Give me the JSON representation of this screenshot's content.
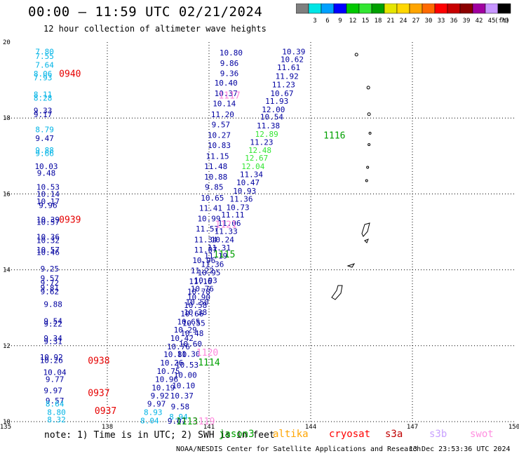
{
  "title": "00:00 – 11:59 UTC 02/21/2024",
  "subtitle": "12 hour collection of altimeter wave heights",
  "legend": {
    "unit": "(ft)",
    "bins": [
      {
        "label": "",
        "color": "#7f7f7f"
      },
      {
        "label": "3",
        "color": "#00e5e5"
      },
      {
        "label": "6",
        "color": "#00a0ff"
      },
      {
        "label": "9",
        "color": "#0000ff"
      },
      {
        "label": "12",
        "color": "#00c800"
      },
      {
        "label": "15",
        "color": "#33e633"
      },
      {
        "label": "18",
        "color": "#00a000"
      },
      {
        "label": "21",
        "color": "#e5e500"
      },
      {
        "label": "24",
        "color": "#ffd700"
      },
      {
        "label": "27",
        "color": "#ffa500"
      },
      {
        "label": "30",
        "color": "#ff6a00"
      },
      {
        "label": "33",
        "color": "#ff0000"
      },
      {
        "label": "36",
        "color": "#c80000"
      },
      {
        "label": "39",
        "color": "#8b0000"
      },
      {
        "label": "42",
        "color": "#a000a0"
      },
      {
        "label": "45",
        "color": "#c896ff"
      },
      {
        "label": "70",
        "color": "#000000"
      }
    ]
  },
  "note": {
    "prefix": "note: 1) Time is in UTC; 2) SWH is in feet",
    "satellites": [
      {
        "name": "jason3",
        "color": "#00a000"
      },
      {
        "name": "altika",
        "color": "#ffa500"
      },
      {
        "name": "cryosat",
        "color": "#ff0000"
      },
      {
        "name": "s3a",
        "color": "#c00000"
      },
      {
        "name": "s3b",
        "color": "#c8a0ff"
      },
      {
        "name": "swot",
        "color": "#ff90e0"
      }
    ]
  },
  "credit": "NOAA/NESDIS Center for Satellite Applications and Research",
  "timestamp": "13 Dec 23:53:36 UTC 2024",
  "chart_data": {
    "type": "scatter",
    "title": "12 hour collection of altimeter wave heights",
    "xlim": [
      135,
      150
    ],
    "ylim": [
      10,
      20
    ],
    "xticks": [
      135,
      138,
      141,
      144,
      147,
      150
    ],
    "yticks": [
      10,
      12,
      14,
      16,
      18,
      20
    ],
    "xtick_labels": [
      "135",
      "138",
      "141",
      "144",
      "147",
      "150"
    ],
    "ytick_labels": [
      "10",
      "12",
      "14",
      "16",
      "18",
      "20"
    ],
    "grid": true,
    "units": "ft",
    "colors": {
      "dark_blue": "#0000a0",
      "cyan": "#00b4e6",
      "green": "#00a000",
      "light_green": "#33e633",
      "red": "#e60000",
      "pink": "#ff88dd"
    },
    "time_labels": [
      {
        "lon": 136.9,
        "lat": 19.18,
        "label": "0940",
        "color": "red"
      },
      {
        "lon": 136.9,
        "lat": 15.33,
        "label": "0939",
        "color": "red"
      },
      {
        "lon": 137.75,
        "lat": 11.62,
        "label": "0938",
        "color": "red"
      },
      {
        "lon": 137.75,
        "lat": 10.77,
        "label": "0937",
        "color": "red"
      },
      {
        "lon": 137.95,
        "lat": 10.3,
        "label": "0937",
        "color": "red"
      },
      {
        "lon": 141.6,
        "lat": 18.6,
        "label": "1117",
        "color": "pink"
      },
      {
        "lon": 141.5,
        "lat": 15.2,
        "label": "1121",
        "color": "pink"
      },
      {
        "lon": 140.95,
        "lat": 11.83,
        "label": "1120",
        "color": "pink"
      },
      {
        "lon": 140.85,
        "lat": 10.02,
        "label": "1119",
        "color": "pink"
      },
      {
        "lon": 144.7,
        "lat": 17.55,
        "label": "1116",
        "color": "green"
      },
      {
        "lon": 141.45,
        "lat": 14.42,
        "label": "1115",
        "color": "green"
      },
      {
        "lon": 141.0,
        "lat": 11.57,
        "label": "1114",
        "color": "green"
      },
      {
        "lon": 140.35,
        "lat": 10.02,
        "label": "1113",
        "color": "green"
      }
    ],
    "points": [
      {
        "lon": 136.15,
        "lat": 19.75,
        "v": "7.80",
        "c": "cyan"
      },
      {
        "lon": 136.15,
        "lat": 19.63,
        "v": "7.55",
        "c": "cyan"
      },
      {
        "lon": 136.15,
        "lat": 19.4,
        "v": "7.64",
        "c": "cyan"
      },
      {
        "lon": 136.1,
        "lat": 19.17,
        "v": "8.06",
        "c": "cyan"
      },
      {
        "lon": 136.1,
        "lat": 19.07,
        "v": "7.93",
        "c": "cyan"
      },
      {
        "lon": 136.1,
        "lat": 18.62,
        "v": "8.11",
        "c": "cyan"
      },
      {
        "lon": 136.1,
        "lat": 18.53,
        "v": "8.28",
        "c": "cyan"
      },
      {
        "lon": 136.1,
        "lat": 18.2,
        "v": "9.33",
        "c": "dark_blue"
      },
      {
        "lon": 136.1,
        "lat": 18.1,
        "v": "9.17",
        "c": "dark_blue"
      },
      {
        "lon": 136.15,
        "lat": 17.7,
        "v": "8.79",
        "c": "cyan"
      },
      {
        "lon": 136.15,
        "lat": 17.47,
        "v": "9.47",
        "c": "dark_blue"
      },
      {
        "lon": 136.15,
        "lat": 17.15,
        "v": "9.88",
        "c": "cyan"
      },
      {
        "lon": 136.15,
        "lat": 17.07,
        "v": "9.66",
        "c": "cyan"
      },
      {
        "lon": 136.2,
        "lat": 16.73,
        "v": "10.03",
        "c": "dark_blue"
      },
      {
        "lon": 136.2,
        "lat": 16.55,
        "v": "9.48",
        "c": "dark_blue"
      },
      {
        "lon": 136.25,
        "lat": 16.18,
        "v": "10.53",
        "c": "dark_blue"
      },
      {
        "lon": 136.25,
        "lat": 16.0,
        "v": "10.14",
        "c": "dark_blue"
      },
      {
        "lon": 136.25,
        "lat": 15.8,
        "v": "10.17",
        "c": "dark_blue"
      },
      {
        "lon": 136.25,
        "lat": 15.7,
        "v": "9.96",
        "c": "dark_blue"
      },
      {
        "lon": 136.25,
        "lat": 15.32,
        "v": "10.39",
        "c": "dark_blue"
      },
      {
        "lon": 136.25,
        "lat": 15.26,
        "v": "10.57",
        "c": "dark_blue"
      },
      {
        "lon": 136.25,
        "lat": 14.87,
        "v": "10.36",
        "c": "dark_blue"
      },
      {
        "lon": 136.25,
        "lat": 14.78,
        "v": "10.32",
        "c": "dark_blue"
      },
      {
        "lon": 136.25,
        "lat": 14.53,
        "v": "10.57",
        "c": "dark_blue"
      },
      {
        "lon": 136.25,
        "lat": 14.46,
        "v": "10.46",
        "c": "dark_blue"
      },
      {
        "lon": 136.3,
        "lat": 14.03,
        "v": "9.25",
        "c": "dark_blue"
      },
      {
        "lon": 136.3,
        "lat": 13.78,
        "v": "9.57",
        "c": "dark_blue"
      },
      {
        "lon": 136.3,
        "lat": 13.66,
        "v": "9.72",
        "c": "dark_blue"
      },
      {
        "lon": 136.3,
        "lat": 13.53,
        "v": "9.81",
        "c": "dark_blue"
      },
      {
        "lon": 136.3,
        "lat": 13.43,
        "v": "9.62",
        "c": "dark_blue"
      },
      {
        "lon": 136.4,
        "lat": 13.1,
        "v": "9.88",
        "c": "dark_blue"
      },
      {
        "lon": 136.4,
        "lat": 12.65,
        "v": "9.54",
        "c": "dark_blue"
      },
      {
        "lon": 136.4,
        "lat": 12.58,
        "v": "9.22",
        "c": "dark_blue"
      },
      {
        "lon": 136.4,
        "lat": 12.2,
        "v": "9.34",
        "c": "dark_blue"
      },
      {
        "lon": 136.4,
        "lat": 12.12,
        "v": "9.31",
        "c": "dark_blue"
      },
      {
        "lon": 136.35,
        "lat": 11.7,
        "v": "10.92",
        "c": "dark_blue"
      },
      {
        "lon": 136.35,
        "lat": 11.62,
        "v": "10.26",
        "c": "dark_blue"
      },
      {
        "lon": 136.45,
        "lat": 11.3,
        "v": "10.04",
        "c": "dark_blue"
      },
      {
        "lon": 136.45,
        "lat": 11.12,
        "v": "9.77",
        "c": "dark_blue"
      },
      {
        "lon": 136.4,
        "lat": 10.82,
        "v": "9.97",
        "c": "dark_blue"
      },
      {
        "lon": 136.45,
        "lat": 10.55,
        "v": "9.57",
        "c": "dark_blue"
      },
      {
        "lon": 136.45,
        "lat": 10.47,
        "v": "8.64",
        "c": "cyan"
      },
      {
        "lon": 136.5,
        "lat": 10.25,
        "v": "8.80",
        "c": "cyan"
      },
      {
        "lon": 136.5,
        "lat": 10.06,
        "v": "8.32",
        "c": "cyan"
      },
      {
        "lon": 141.65,
        "lat": 19.72,
        "v": "10.80",
        "c": "dark_blue"
      },
      {
        "lon": 141.6,
        "lat": 19.45,
        "v": "9.86",
        "c": "dark_blue"
      },
      {
        "lon": 141.6,
        "lat": 19.18,
        "v": "9.36",
        "c": "dark_blue"
      },
      {
        "lon": 141.5,
        "lat": 18.93,
        "v": "10.40",
        "c": "dark_blue"
      },
      {
        "lon": 141.5,
        "lat": 18.65,
        "v": "10.37",
        "c": "dark_blue"
      },
      {
        "lon": 141.45,
        "lat": 18.38,
        "v": "10.14",
        "c": "dark_blue"
      },
      {
        "lon": 141.4,
        "lat": 18.1,
        "v": "11.20",
        "c": "dark_blue"
      },
      {
        "lon": 141.35,
        "lat": 17.83,
        "v": "9.57",
        "c": "dark_blue"
      },
      {
        "lon": 141.3,
        "lat": 17.55,
        "v": "10.27",
        "c": "dark_blue"
      },
      {
        "lon": 141.3,
        "lat": 17.28,
        "v": "10.83",
        "c": "dark_blue"
      },
      {
        "lon": 141.25,
        "lat": 17.0,
        "v": "11.15",
        "c": "dark_blue"
      },
      {
        "lon": 141.2,
        "lat": 16.73,
        "v": "11.48",
        "c": "dark_blue"
      },
      {
        "lon": 141.2,
        "lat": 16.45,
        "v": "10.88",
        "c": "dark_blue"
      },
      {
        "lon": 141.15,
        "lat": 16.18,
        "v": "9.85",
        "c": "dark_blue"
      },
      {
        "lon": 141.1,
        "lat": 15.9,
        "v": "10.65",
        "c": "dark_blue"
      },
      {
        "lon": 141.05,
        "lat": 15.63,
        "v": "11.41",
        "c": "dark_blue"
      },
      {
        "lon": 141.0,
        "lat": 15.35,
        "v": "10.99",
        "c": "dark_blue"
      },
      {
        "lon": 140.95,
        "lat": 15.08,
        "v": "11.57",
        "c": "dark_blue"
      },
      {
        "lon": 140.9,
        "lat": 14.8,
        "v": "11.34",
        "c": "dark_blue"
      },
      {
        "lon": 140.9,
        "lat": 14.53,
        "v": "11.07",
        "c": "dark_blue"
      },
      {
        "lon": 140.85,
        "lat": 14.25,
        "v": "10.96",
        "c": "dark_blue"
      },
      {
        "lon": 140.8,
        "lat": 13.98,
        "v": "11.22",
        "c": "dark_blue"
      },
      {
        "lon": 140.75,
        "lat": 13.7,
        "v": "11.16",
        "c": "dark_blue"
      },
      {
        "lon": 140.7,
        "lat": 13.43,
        "v": "10.78",
        "c": "dark_blue"
      },
      {
        "lon": 140.65,
        "lat": 13.15,
        "v": "10.50",
        "c": "dark_blue"
      },
      {
        "lon": 140.6,
        "lat": 12.88,
        "v": "10.38",
        "c": "dark_blue"
      },
      {
        "lon": 140.55,
        "lat": 12.6,
        "v": "10.55",
        "c": "dark_blue"
      },
      {
        "lon": 140.5,
        "lat": 12.33,
        "v": "10.48",
        "c": "dark_blue"
      },
      {
        "lon": 140.45,
        "lat": 12.05,
        "v": "10.60",
        "c": "dark_blue"
      },
      {
        "lon": 140.4,
        "lat": 11.78,
        "v": "11.30",
        "c": "dark_blue"
      },
      {
        "lon": 140.35,
        "lat": 11.5,
        "v": "10.53",
        "c": "dark_blue"
      },
      {
        "lon": 140.3,
        "lat": 11.23,
        "v": "10.00",
        "c": "dark_blue"
      },
      {
        "lon": 140.25,
        "lat": 10.95,
        "v": "10.10",
        "c": "dark_blue"
      },
      {
        "lon": 140.2,
        "lat": 10.68,
        "v": "10.37",
        "c": "dark_blue"
      },
      {
        "lon": 140.15,
        "lat": 10.4,
        "v": "9.58",
        "c": "dark_blue"
      },
      {
        "lon": 140.1,
        "lat": 10.13,
        "v": "8.94",
        "c": "cyan"
      },
      {
        "lon": 140.05,
        "lat": 10.02,
        "v": "9.07",
        "c": "dark_blue"
      },
      {
        "lon": 143.5,
        "lat": 19.75,
        "v": "10.39",
        "c": "dark_blue"
      },
      {
        "lon": 143.45,
        "lat": 19.55,
        "v": "10.62",
        "c": "dark_blue"
      },
      {
        "lon": 143.35,
        "lat": 19.33,
        "v": "11.61",
        "c": "dark_blue"
      },
      {
        "lon": 143.3,
        "lat": 19.1,
        "v": "11.92",
        "c": "dark_blue"
      },
      {
        "lon": 143.2,
        "lat": 18.88,
        "v": "11.23",
        "c": "dark_blue"
      },
      {
        "lon": 143.15,
        "lat": 18.65,
        "v": "10.67",
        "c": "dark_blue"
      },
      {
        "lon": 143.0,
        "lat": 18.45,
        "v": "11.93",
        "c": "dark_blue"
      },
      {
        "lon": 142.9,
        "lat": 18.23,
        "v": "12.00",
        "c": "dark_blue"
      },
      {
        "lon": 142.85,
        "lat": 18.03,
        "v": "10.54",
        "c": "dark_blue"
      },
      {
        "lon": 142.75,
        "lat": 17.8,
        "v": "11.38",
        "c": "dark_blue"
      },
      {
        "lon": 142.7,
        "lat": 17.58,
        "v": "12.89",
        "c": "light_green"
      },
      {
        "lon": 142.55,
        "lat": 17.37,
        "v": "11.23",
        "c": "dark_blue"
      },
      {
        "lon": 142.5,
        "lat": 17.15,
        "v": "12.48",
        "c": "light_green"
      },
      {
        "lon": 142.4,
        "lat": 16.95,
        "v": "12.67",
        "c": "light_green"
      },
      {
        "lon": 142.3,
        "lat": 16.73,
        "v": "12.04",
        "c": "light_green"
      },
      {
        "lon": 142.25,
        "lat": 16.52,
        "v": "11.34",
        "c": "dark_blue"
      },
      {
        "lon": 142.15,
        "lat": 16.3,
        "v": "10.47",
        "c": "dark_blue"
      },
      {
        "lon": 142.05,
        "lat": 16.08,
        "v": "10.93",
        "c": "dark_blue"
      },
      {
        "lon": 141.95,
        "lat": 15.87,
        "v": "11.36",
        "c": "dark_blue"
      },
      {
        "lon": 141.85,
        "lat": 15.65,
        "v": "10.73",
        "c": "dark_blue"
      },
      {
        "lon": 141.7,
        "lat": 15.45,
        "v": "11.11",
        "c": "dark_blue"
      },
      {
        "lon": 141.6,
        "lat": 15.23,
        "v": "11.06",
        "c": "dark_blue"
      },
      {
        "lon": 141.5,
        "lat": 15.02,
        "v": "11.33",
        "c": "dark_blue"
      },
      {
        "lon": 141.4,
        "lat": 14.8,
        "v": "10.24",
        "c": "dark_blue"
      },
      {
        "lon": 141.3,
        "lat": 14.58,
        "v": "11.31",
        "c": "dark_blue"
      },
      {
        "lon": 141.2,
        "lat": 14.37,
        "v": "11.19",
        "c": "dark_blue"
      },
      {
        "lon": 141.1,
        "lat": 14.15,
        "v": "11.36",
        "c": "dark_blue"
      },
      {
        "lon": 141.0,
        "lat": 13.93,
        "v": "10.95",
        "c": "dark_blue"
      },
      {
        "lon": 140.9,
        "lat": 13.72,
        "v": "10.93",
        "c": "dark_blue"
      },
      {
        "lon": 140.8,
        "lat": 13.5,
        "v": "10.76",
        "c": "dark_blue"
      },
      {
        "lon": 140.7,
        "lat": 13.28,
        "v": "10.90",
        "c": "dark_blue"
      },
      {
        "lon": 140.6,
        "lat": 13.07,
        "v": "10.58",
        "c": "dark_blue"
      },
      {
        "lon": 140.5,
        "lat": 12.85,
        "v": "10.66",
        "c": "dark_blue"
      },
      {
        "lon": 140.4,
        "lat": 12.63,
        "v": "10.65",
        "c": "dark_blue"
      },
      {
        "lon": 140.3,
        "lat": 12.42,
        "v": "10.29",
        "c": "dark_blue"
      },
      {
        "lon": 140.2,
        "lat": 12.2,
        "v": "10.42",
        "c": "dark_blue"
      },
      {
        "lon": 140.1,
        "lat": 11.98,
        "v": "10.76",
        "c": "dark_blue"
      },
      {
        "lon": 140.0,
        "lat": 11.77,
        "v": "10.80",
        "c": "dark_blue"
      },
      {
        "lon": 139.9,
        "lat": 11.55,
        "v": "10.26",
        "c": "dark_blue"
      },
      {
        "lon": 139.8,
        "lat": 11.33,
        "v": "10.75",
        "c": "dark_blue"
      },
      {
        "lon": 139.75,
        "lat": 11.12,
        "v": "10.96",
        "c": "dark_blue"
      },
      {
        "lon": 139.65,
        "lat": 10.9,
        "v": "10.19",
        "c": "dark_blue"
      },
      {
        "lon": 139.55,
        "lat": 10.68,
        "v": "9.92",
        "c": "dark_blue"
      },
      {
        "lon": 139.45,
        "lat": 10.47,
        "v": "9.97",
        "c": "dark_blue"
      },
      {
        "lon": 139.35,
        "lat": 10.25,
        "v": "8.93",
        "c": "cyan"
      },
      {
        "lon": 139.25,
        "lat": 10.03,
        "v": "8.04",
        "c": "cyan"
      }
    ]
  }
}
